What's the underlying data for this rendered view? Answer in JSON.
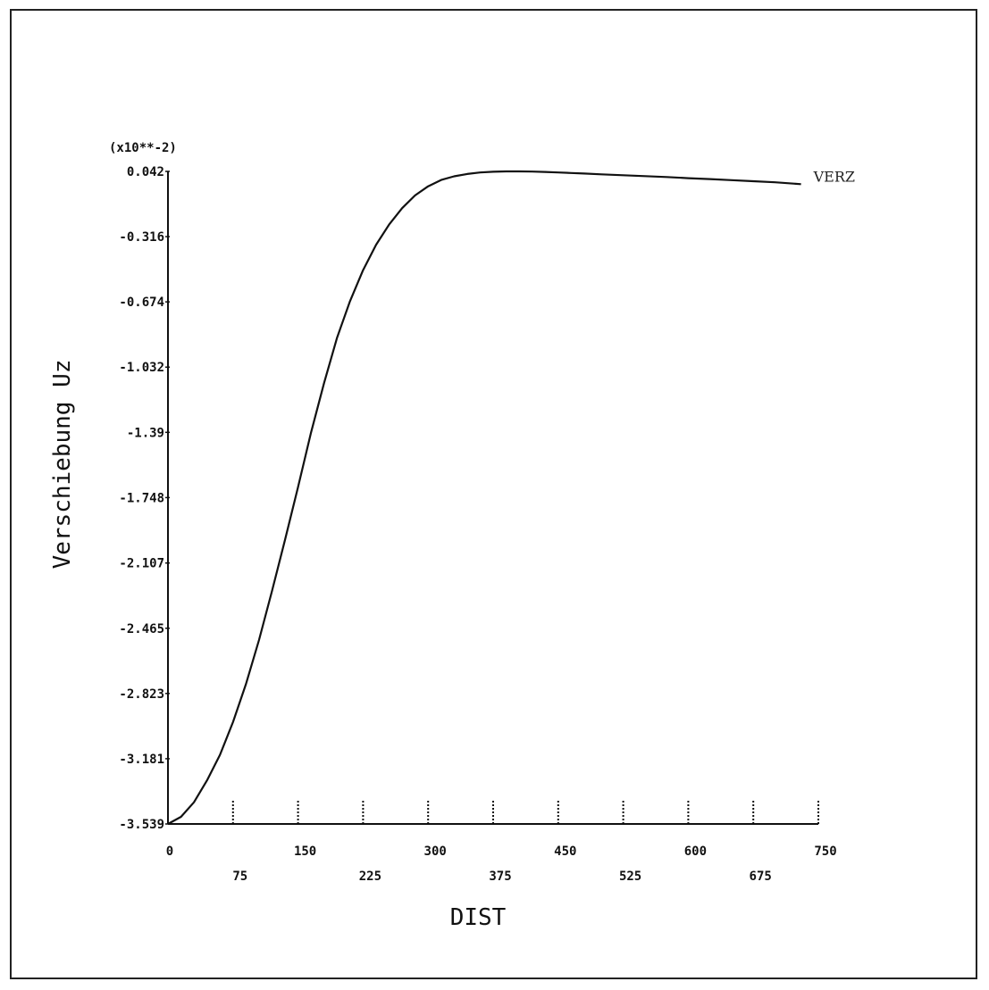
{
  "chart_data": {
    "type": "line",
    "xlabel": "DIST",
    "ylabel": "Verschiebung Uz",
    "y_multiplier": "(x10**-2)",
    "xlim": [
      0,
      750
    ],
    "ylim": [
      -3.539,
      0.042
    ],
    "x_ticks": [
      "0",
      "75",
      "150",
      "225",
      "300",
      "375",
      "450",
      "525",
      "600",
      "675",
      "750"
    ],
    "y_ticks": [
      "0.042",
      "-0.316",
      "-0.674",
      "-1.032",
      "-1.39",
      "-1.748",
      "-2.107",
      "-2.465",
      "-2.823",
      "-3.181",
      "-3.539"
    ],
    "grid": false,
    "series": [
      {
        "name": "VERZ",
        "x": [
          0,
          15,
          30,
          45,
          60,
          75,
          90,
          105,
          120,
          135,
          150,
          165,
          180,
          195,
          210,
          225,
          240,
          255,
          270,
          285,
          300,
          315,
          330,
          345,
          360,
          375,
          390,
          405,
          420,
          435,
          450,
          465,
          480,
          500,
          525,
          550,
          575,
          600,
          625,
          650,
          675,
          700,
          730
        ],
        "y": [
          -3.539,
          -3.5,
          -3.42,
          -3.3,
          -3.16,
          -2.98,
          -2.77,
          -2.53,
          -2.26,
          -1.98,
          -1.69,
          -1.39,
          -1.12,
          -0.87,
          -0.67,
          -0.5,
          -0.36,
          -0.25,
          -0.16,
          -0.09,
          -0.04,
          -0.005,
          0.015,
          0.028,
          0.036,
          0.04,
          0.042,
          0.042,
          0.041,
          0.039,
          0.036,
          0.033,
          0.03,
          0.026,
          0.021,
          0.016,
          0.011,
          0.005,
          0.0,
          -0.006,
          -0.012,
          -0.018,
          -0.028
        ]
      }
    ]
  }
}
